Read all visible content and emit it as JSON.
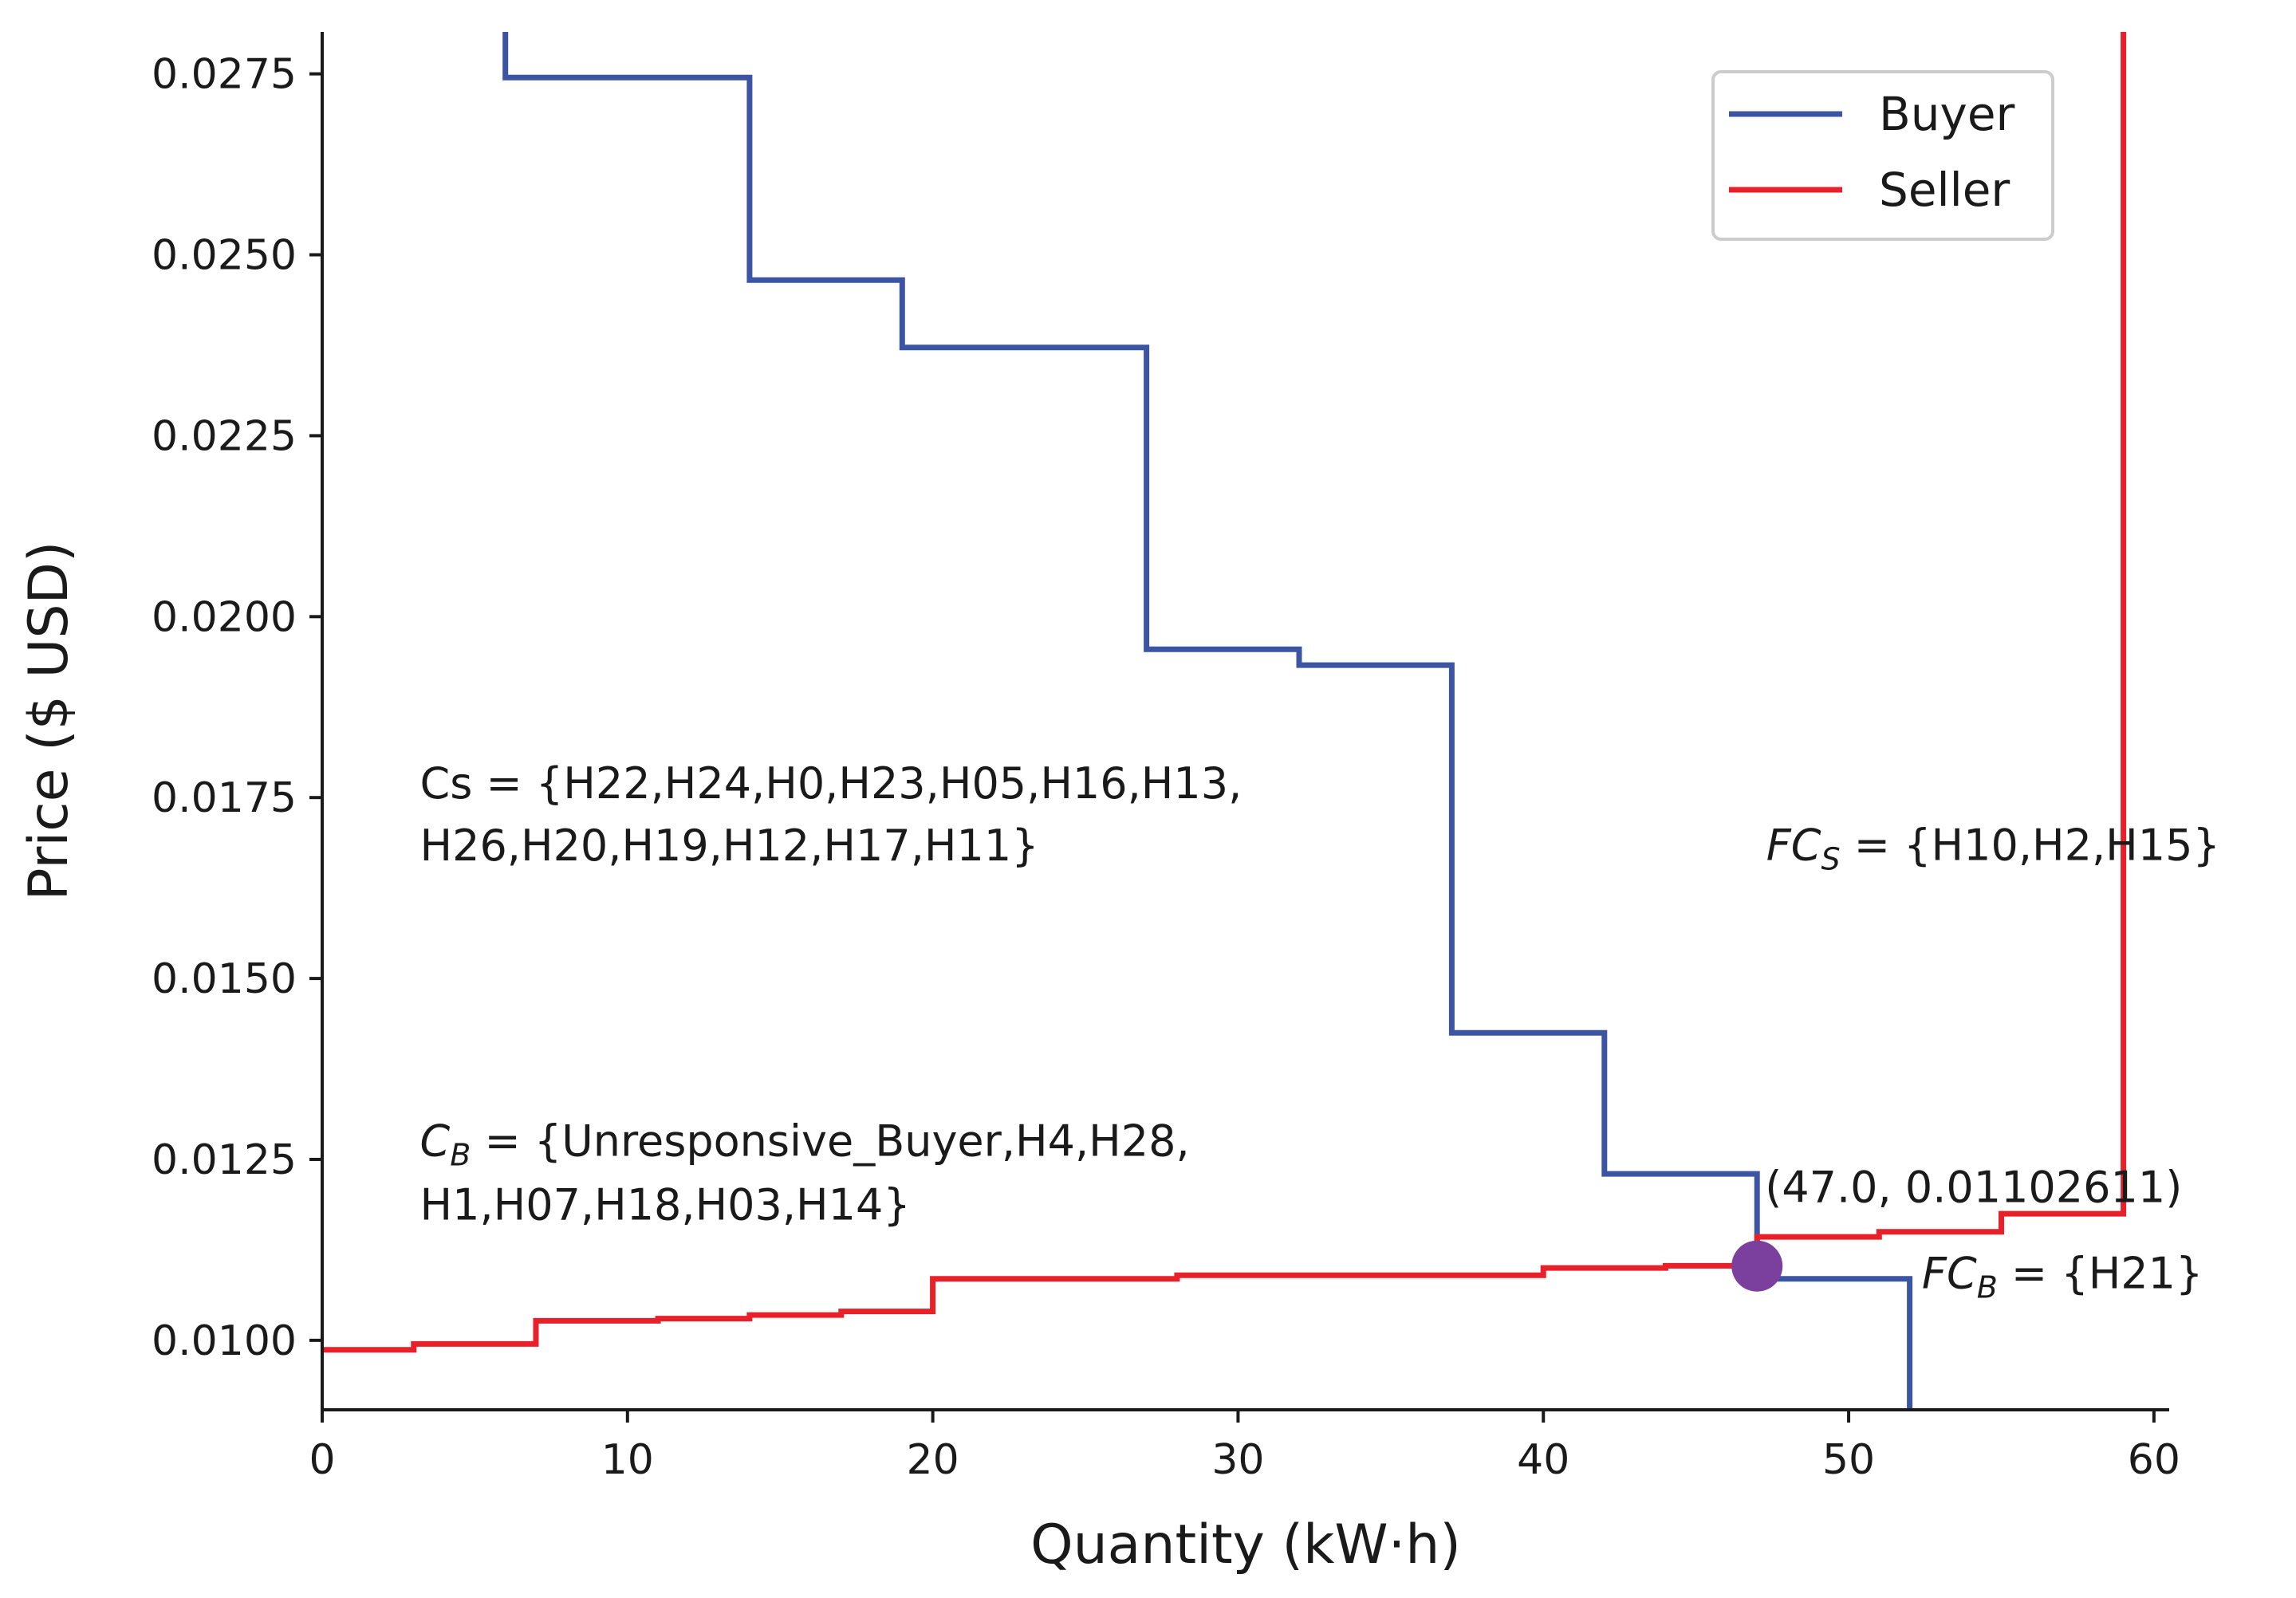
{
  "chart_data": {
    "type": "line",
    "step": "post",
    "xlabel": "Quantity (kW·h)",
    "ylabel": "Price ($ USD)",
    "xlim": [
      0,
      60.5
    ],
    "ylim": [
      0.00904,
      0.02808
    ],
    "xticks": [
      0,
      10,
      20,
      30,
      40,
      50,
      60
    ],
    "xtick_labels": [
      "0",
      "10",
      "20",
      "30",
      "40",
      "50",
      "60"
    ],
    "yticks": [
      0.01,
      0.0125,
      0.015,
      0.0175,
      0.02,
      0.0225,
      0.025,
      0.0275
    ],
    "ytick_labels": [
      "0.0100",
      "0.0125",
      "0.0150",
      "0.0175",
      "0.0200",
      "0.0225",
      "0.0250",
      "0.0275"
    ],
    "legend": {
      "position": "top-right",
      "entries": [
        "Buyer",
        "Seller"
      ]
    },
    "series": [
      {
        "name": "Buyer",
        "color": "#3b55a3",
        "points": [
          [
            6,
            0.02808
          ],
          [
            6,
            0.02745
          ],
          [
            14,
            0.02745
          ],
          [
            14,
            0.02465
          ],
          [
            19,
            0.02465
          ],
          [
            19,
            0.02372
          ],
          [
            27,
            0.02372
          ],
          [
            27,
            0.01955
          ],
          [
            32,
            0.01955
          ],
          [
            32,
            0.01933
          ],
          [
            37,
            0.01933
          ],
          [
            37,
            0.01425
          ],
          [
            42,
            0.01425
          ],
          [
            42,
            0.0123
          ],
          [
            47,
            0.0123
          ],
          [
            47,
            0.01085
          ],
          [
            52,
            0.01085
          ],
          [
            52,
            0.00904
          ]
        ]
      },
      {
        "name": "Seller",
        "color": "#e8202a",
        "points": [
          [
            0,
            0.00987
          ],
          [
            3,
            0.00987
          ],
          [
            3,
            0.00995
          ],
          [
            7,
            0.00995
          ],
          [
            7,
            0.01027
          ],
          [
            11,
            0.01027
          ],
          [
            11,
            0.0103
          ],
          [
            14,
            0.0103
          ],
          [
            14,
            0.01035
          ],
          [
            17,
            0.01035
          ],
          [
            17,
            0.0104
          ],
          [
            20,
            0.0104
          ],
          [
            20,
            0.01085
          ],
          [
            28,
            0.01085
          ],
          [
            28,
            0.0109
          ],
          [
            40,
            0.0109
          ],
          [
            40,
            0.011
          ],
          [
            44,
            0.011
          ],
          [
            44,
            0.01103
          ],
          [
            47,
            0.01103
          ],
          [
            47,
            0.01143
          ],
          [
            51,
            0.01143
          ],
          [
            51,
            0.0115
          ],
          [
            55,
            0.0115
          ],
          [
            55,
            0.01175
          ],
          [
            59,
            0.01175
          ],
          [
            59,
            0.02808
          ]
        ]
      }
    ],
    "equilibrium": {
      "x": 47.0,
      "y": 0.01102611,
      "color": "#7b3f9e",
      "label": "(47.0, 0.01102611)"
    },
    "annotations": [
      {
        "key": "cs",
        "x": 3.2,
        "y": 0.01749,
        "lines": [
          "Cs = {H22,H24,H0,H23,H05,H16,H13,",
          "H26,H20,H19,H12,H17,H11}"
        ]
      },
      {
        "key": "cb",
        "x": 3.2,
        "y": 0.01255,
        "main": "C",
        "sub": "B",
        "rest": " = {Unresponsive_Buyer,H4,H28,",
        "line2": "H1,H07,H18,H03,H14}"
      },
      {
        "key": "fcs",
        "x": 47.3,
        "y": 0.01664,
        "main": "FC",
        "sub": "S",
        "rest": " = {H10,H2,H15}"
      },
      {
        "key": "fcb",
        "x": 52.4,
        "y": 0.01072,
        "main": "FC",
        "sub": "B",
        "rest": " = {H21}"
      }
    ]
  }
}
